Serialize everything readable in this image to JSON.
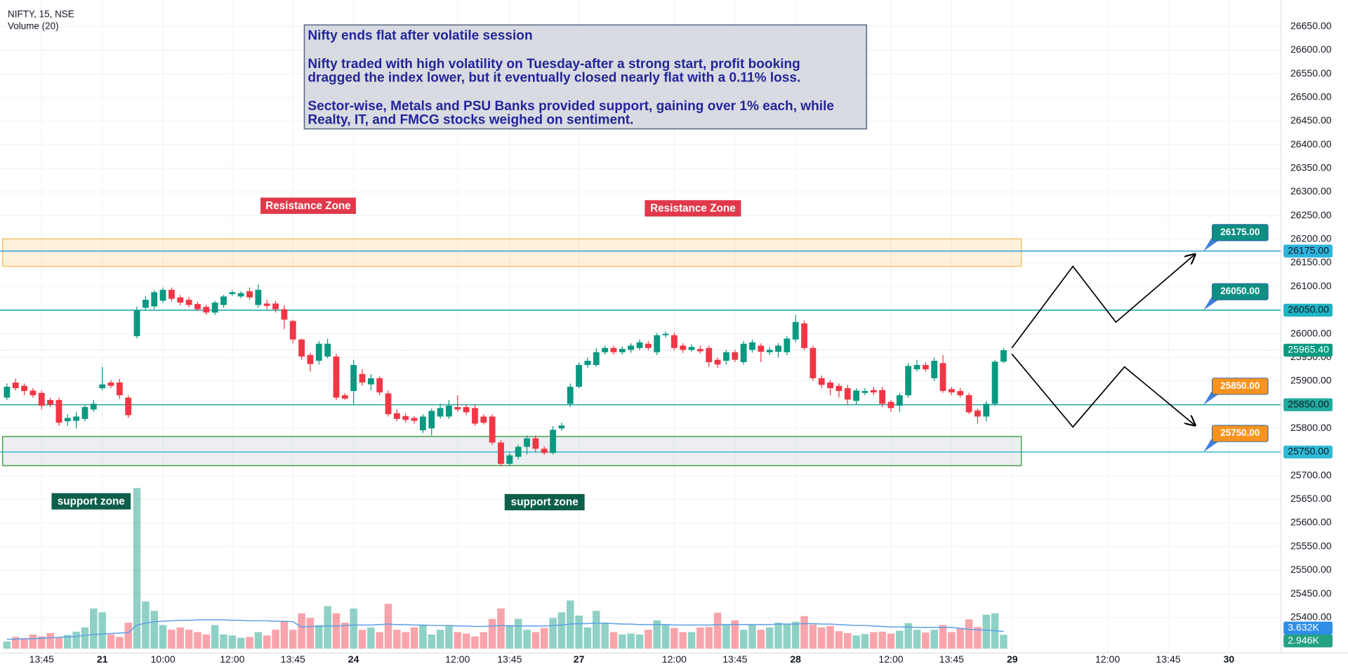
{
  "chart_data": {
    "type": "candlestick",
    "title": "NIFTY, 15, NSE",
    "up_color": "#089981",
    "down_color": "#f23645",
    "xlim": [
      -0.8,
      147
    ],
    "xticks": [
      {
        "value": 4,
        "label": "13:45"
      },
      {
        "value": 11,
        "label": "21"
      },
      {
        "value": 18,
        "label": "10:00"
      },
      {
        "value": 26,
        "label": "12:00"
      },
      {
        "value": 33,
        "label": "13:45"
      },
      {
        "value": 40,
        "label": "24"
      },
      {
        "value": 52,
        "label": "12:00"
      },
      {
        "value": 58,
        "label": "13:45"
      },
      {
        "value": 66,
        "label": "27"
      },
      {
        "value": 77,
        "label": "12:00"
      },
      {
        "value": 84,
        "label": "13:45"
      },
      {
        "value": 91,
        "label": "28"
      },
      {
        "value": 102,
        "label": "12:00"
      },
      {
        "value": 109,
        "label": "13:45"
      },
      {
        "value": 116,
        "label": "29"
      },
      {
        "value": 127,
        "label": "12:00"
      },
      {
        "value": 134,
        "label": "13:45"
      },
      {
        "value": 141,
        "label": "30"
      }
    ],
    "ylim": [
      25325,
      26706
    ],
    "yticks": [
      {
        "value": 26650,
        "label": "26650.00"
      },
      {
        "value": 26600,
        "label": "26600.00"
      },
      {
        "value": 26550,
        "label": "26550.00"
      },
      {
        "value": 26500,
        "label": "26500.00"
      },
      {
        "value": 26450,
        "label": "26450.00"
      },
      {
        "value": 26400,
        "label": "26400.00"
      },
      {
        "value": 26350,
        "label": "26350.00"
      },
      {
        "value": 26300,
        "label": "26300.00"
      },
      {
        "value": 26250,
        "label": "26250.00"
      },
      {
        "value": 26200,
        "label": "26200.00"
      },
      {
        "value": 26150,
        "label": "26150.00"
      },
      {
        "value": 26100,
        "label": "26100.00"
      },
      {
        "value": 26050,
        "label": "26050.00"
      },
      {
        "value": 26000,
        "label": "26000.00"
      },
      {
        "value": 25950,
        "label": "25950.00"
      },
      {
        "value": 25900,
        "label": "25900.00"
      },
      {
        "value": 25850,
        "label": "25850.00"
      },
      {
        "value": 25800,
        "label": "25800.00"
      },
      {
        "value": 25750,
        "label": "25750.00"
      },
      {
        "value": 25700,
        "label": "25700.00"
      },
      {
        "value": 25650,
        "label": "25650.00"
      },
      {
        "value": 25600,
        "label": "25600.00"
      },
      {
        "value": 25550,
        "label": "25550.00"
      },
      {
        "value": 25500,
        "label": "25500.00"
      },
      {
        "value": 25450,
        "label": "25450.00"
      },
      {
        "value": 25400,
        "label": "25400.00"
      }
    ],
    "grid": true,
    "open": [
      25865,
      25897,
      25890,
      25880,
      25875,
      25860,
      25860,
      25815,
      25816,
      25820,
      25840,
      25885,
      25897,
      25897,
      25865,
      25995,
      26055,
      26058,
      26070,
      26093,
      26077,
      26072,
      26063,
      26057,
      26045,
      26061,
      26084,
      26079,
      26090,
      26061,
      26064,
      26064,
      26052,
      26027,
      25988,
      25955,
      25943,
      25952,
      25952,
      25870,
      25879,
      25915,
      25893,
      25906,
      25874,
      25832,
      25826,
      25822,
      25796,
      25800,
      25825,
      25825,
      25845,
      25845,
      25843,
      25825,
      25825,
      25770,
      25725,
      25740,
      25761,
      25779,
      25757,
      25748,
      25800,
      25852,
      25888,
      25934,
      25934,
      25961,
      25970,
      25961,
      25966,
      25970,
      25979,
      25961,
      25997,
      25997,
      25975,
      25966,
      25968,
      25970,
      25945,
      25943,
      25961,
      25940,
      25966,
      25975,
      25961,
      25962,
      25961,
      25988,
      26022,
      25970,
      25906,
      25897,
      25890,
      25885,
      25858,
      25875,
      25881,
      25881,
      25856,
      25848,
      25870,
      25925,
      25934,
      25906,
      25938,
      25883,
      25879,
      25870,
      25838,
      25825,
      25852,
      25941
    ],
    "high": [
      25895,
      25905,
      25895,
      25885,
      25880,
      25865,
      25865,
      25830,
      25835,
      25850,
      25860,
      25930,
      25902,
      25905,
      25870,
      26058,
      26080,
      26092,
      26098,
      26098,
      26082,
      26078,
      26068,
      26062,
      26070,
      26082,
      26092,
      26090,
      26098,
      26105,
      26072,
      26070,
      26060,
      26030,
      25990,
      25960,
      25985,
      25990,
      25958,
      25875,
      25945,
      25925,
      25915,
      25910,
      25880,
      25840,
      25832,
      25826,
      25830,
      25842,
      25852,
      25860,
      25870,
      25850,
      25850,
      25830,
      25830,
      25775,
      25748,
      25765,
      25785,
      25785,
      25762,
      25805,
      25812,
      25895,
      25940,
      25950,
      25970,
      25975,
      25975,
      25973,
      25980,
      25988,
      25985,
      26002,
      26005,
      26002,
      25980,
      25978,
      25975,
      25975,
      25950,
      25966,
      25966,
      25985,
      25988,
      25980,
      25972,
      25980,
      25995,
      26040,
      26028,
      25975,
      25912,
      25902,
      25895,
      25892,
      25885,
      25885,
      25888,
      25888,
      25860,
      25875,
      25938,
      25945,
      25940,
      25950,
      25955,
      25888,
      25885,
      25875,
      25842,
      25858,
      25945,
      25970
    ],
    "low": [
      25860,
      25880,
      25870,
      25865,
      25840,
      25845,
      25805,
      25805,
      25800,
      25815,
      25835,
      25880,
      25885,
      25862,
      25822,
      25990,
      26050,
      26052,
      26065,
      26068,
      26060,
      26056,
      26048,
      26040,
      26040,
      26055,
      26080,
      26075,
      26072,
      26055,
      26052,
      26045,
      26010,
      25980,
      25945,
      25920,
      25935,
      25948,
      25860,
      25860,
      25850,
      25890,
      25880,
      25870,
      25825,
      25815,
      25812,
      25810,
      25790,
      25785,
      25820,
      25820,
      25835,
      25828,
      25805,
      25808,
      25765,
      25720,
      25720,
      25735,
      25745,
      25750,
      25744,
      25745,
      25795,
      25845,
      25885,
      25928,
      25930,
      25956,
      25956,
      25956,
      25960,
      25965,
      25965,
      25955,
      25992,
      25965,
      25960,
      25962,
      25958,
      25930,
      25928,
      25935,
      25940,
      25935,
      25960,
      25940,
      25955,
      25950,
      25955,
      25982,
      25965,
      25900,
      25885,
      25870,
      25865,
      25850,
      25850,
      25870,
      25870,
      25845,
      25835,
      25835,
      25865,
      25920,
      25920,
      25900,
      25875,
      25870,
      25865,
      25830,
      25810,
      25815,
      25848,
      25938
    ],
    "close": [
      25888,
      25885,
      25879,
      25870,
      25848,
      25850,
      25812,
      25822,
      25825,
      25845,
      25852,
      25893,
      25890,
      25870,
      25828,
      26050,
      26072,
      26088,
      26093,
      26074,
      26066,
      26061,
      26052,
      26045,
      26066,
      26079,
      26088,
      26086,
      26077,
      26093,
      26059,
      26052,
      26030,
      25988,
      25952,
      25936,
      25979,
      25979,
      25865,
      25863,
      25934,
      25897,
      25906,
      25876,
      25830,
      25820,
      25818,
      25816,
      25825,
      25837,
      25843,
      25848,
      25840,
      25834,
      25810,
      25812,
      25770,
      25725,
      25743,
      25761,
      25779,
      25757,
      25748,
      25797,
      25806,
      25888,
      25934,
      25943,
      25961,
      25970,
      25961,
      25968,
      25975,
      25982,
      25970,
      25997,
      26000,
      25970,
      25966,
      25972,
      25963,
      25940,
      25935,
      25961,
      25945,
      25979,
      25982,
      25962,
      25966,
      25975,
      25990,
      26025,
      25970,
      25906,
      25892,
      25885,
      25879,
      25861,
      25880,
      25879,
      25876,
      25852,
      25843,
      25870,
      25932,
      25934,
      25925,
      25943,
      25879,
      25876,
      25870,
      25834,
      25825,
      25852,
      25941,
      25965.4
    ],
    "last_price": {
      "value": 25965.4,
      "label": "25965.40",
      "color": "#089981"
    },
    "volume": {
      "name": "Volume (20)",
      "ylim": [
        0,
        40
      ],
      "up_color": "rgba(8,153,129,0.45)",
      "down_color": "rgba(242,54,69,0.45)",
      "ma_color": "#5b9ee6",
      "values": [
        1.5,
        2.5,
        2.2,
        3,
        2.6,
        3.3,
        2.3,
        2.9,
        3.6,
        4.5,
        8.5,
        7.7,
        3,
        2.5,
        5.5,
        34,
        10,
        8,
        5,
        4,
        4.5,
        4,
        3.5,
        3,
        5,
        3,
        2.8,
        2.3,
        2.5,
        3.5,
        2.8,
        4,
        5.8,
        4,
        7.5,
        6.5,
        5,
        9,
        7.5,
        5.5,
        8.5,
        4,
        4.5,
        3.5,
        9.5,
        4,
        3.5,
        4.5,
        5,
        3,
        4,
        5,
        3.5,
        3.2,
        2.6,
        3.5,
        6.3,
        8.5,
        5,
        6.3,
        4,
        3.5,
        4.4,
        6.5,
        7.7,
        10.2,
        7,
        4.5,
        8,
        5.5,
        3.5,
        3,
        3.2,
        3,
        4,
        6,
        5,
        4.4,
        3.5,
        3.5,
        4.5,
        4.6,
        7.6,
        5,
        6,
        4,
        5,
        4,
        4.5,
        5.5,
        5.3,
        5.7,
        6.9,
        5.1,
        4.5,
        4.8,
        3.7,
        3.3,
        2.8,
        3.1,
        3.5,
        3.6,
        3.2,
        3.8,
        5.4,
        4,
        3.4,
        4,
        5,
        3.5,
        4.4,
        6.2,
        4.6,
        7.2,
        7.5,
        2.946
      ],
      "ma": [
        2.0,
        2.0,
        2.1,
        2.1,
        2.2,
        2.3,
        2.4,
        2.5,
        2.6,
        2.8,
        3.0,
        3.1,
        3.2,
        3.3,
        3.4,
        5.0,
        5.4,
        5.7,
        5.8,
        5.9,
        6.0,
        6.0,
        6.1,
        6.1,
        6.1,
        6.1,
        6.0,
        6.0,
        5.9,
        5.9,
        5.9,
        5.8,
        5.8,
        5.7,
        4.6,
        4.7,
        4.7,
        4.8,
        4.8,
        4.9,
        5.0,
        5.0,
        5.0,
        5.1,
        5.2,
        5.1,
        5.1,
        5.0,
        5.0,
        4.9,
        4.9,
        4.9,
        4.8,
        4.8,
        4.7,
        4.7,
        4.8,
        4.9,
        4.8,
        4.8,
        4.8,
        4.8,
        4.8,
        4.9,
        5.0,
        5.2,
        5.3,
        5.3,
        5.4,
        5.4,
        5.3,
        5.2,
        5.2,
        5.1,
        5.1,
        5.1,
        5.1,
        5.0,
        5.0,
        5.0,
        5.0,
        5.0,
        5.1,
        5.1,
        5.1,
        5.1,
        5.1,
        5.1,
        5.1,
        5.2,
        5.2,
        5.2,
        5.3,
        5.3,
        5.2,
        5.2,
        5.1,
        5.0,
        4.9,
        4.9,
        4.8,
        4.7,
        4.6,
        4.6,
        4.6,
        4.5,
        4.5,
        4.5,
        4.5,
        4.5,
        4.3,
        4.1,
        4.0,
        3.9,
        3.8,
        3.632
      ],
      "last_labels": [
        {
          "value": 3.632,
          "label": "3.632K",
          "color": "#2f8fe8"
        },
        {
          "value": 2.946,
          "label": "2.946K",
          "color": "#22a283"
        }
      ]
    },
    "levels": [
      {
        "value": 26175,
        "label": "26175.00",
        "color": "#3ba5dc",
        "axis_color": "#2eb4dc",
        "callout_color": "#0e8f82"
      },
      {
        "value": 26050,
        "label": "26050.00",
        "color": "#22aab8",
        "axis_color": "#1fb3c3",
        "callout_color": "#0e8f82"
      },
      {
        "value": 25850,
        "label": "25850.00",
        "color": "#22a69a",
        "axis_color": "#20ab9f",
        "callout_color": "#f7931e"
      },
      {
        "value": 25750,
        "label": "25750.00",
        "color": "#3ab6d6",
        "axis_color": "#2fbad8",
        "callout_color": "#f7931e"
      }
    ],
    "note": {
      "title": "Nifty ends flat after volatile session",
      "lines": [
        "Nifty traded with high volatility on Tuesday-after a strong start, profit booking",
        "dragged the index lower, but it eventually closed nearly flat with a 0.11% loss.",
        "Sector-wise, Metals and PSU Banks provided support, gaining over 1% each, while",
        "Realty, IT, and FMCG stocks weighed on sentiment."
      ]
    },
    "zone_labels": [
      "Resistance Zone",
      "Resistance Zone",
      "support zone",
      "support zone"
    ]
  }
}
